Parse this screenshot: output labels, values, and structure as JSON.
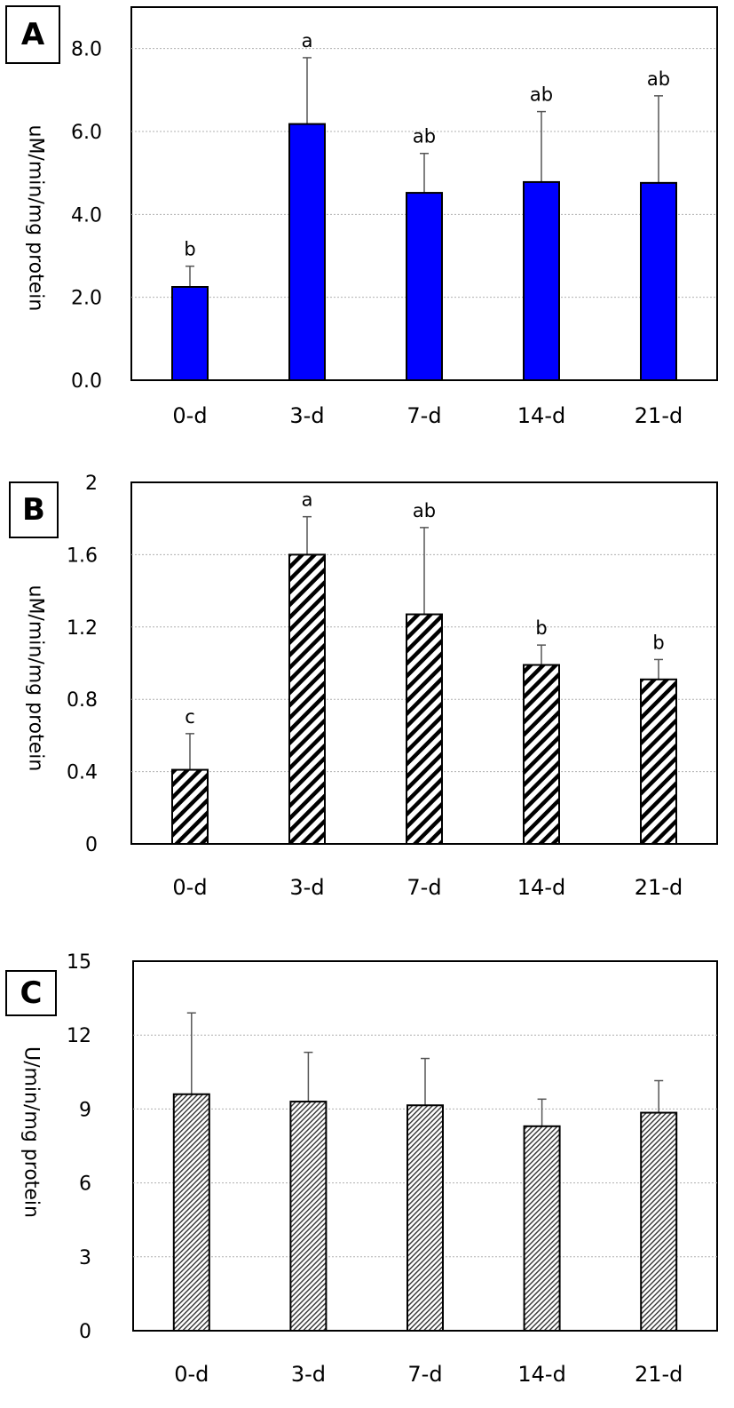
{
  "chart_data": [
    {
      "type": "bar",
      "panel_label": "A",
      "ylabel": "uM/min/mg protein",
      "xlabel": "",
      "categories": [
        "0-d",
        "3-d",
        "7-d",
        "14-d",
        "21-d"
      ],
      "values": [
        2.25,
        6.18,
        4.52,
        4.78,
        4.76
      ],
      "errors": [
        0.5,
        1.6,
        0.95,
        1.7,
        2.1
      ],
      "letters": [
        "b",
        "a",
        "ab",
        "ab",
        "ab"
      ],
      "ylim": [
        0,
        9
      ],
      "yticks": [
        "0.0",
        "2.0",
        "4.0",
        "6.0",
        "8.0"
      ],
      "ytick_values": [
        0,
        2,
        4,
        6,
        8
      ],
      "fill": "blue-solid",
      "bar_color": "#0000ff",
      "grid": true
    },
    {
      "type": "bar",
      "panel_label": "B",
      "ylabel": "uM/min/mg protein",
      "xlabel": "",
      "categories": [
        "0-d",
        "3-d",
        "7-d",
        "14-d",
        "21-d"
      ],
      "values": [
        0.41,
        1.6,
        1.27,
        0.99,
        0.91
      ],
      "errors": [
        0.2,
        0.21,
        0.48,
        0.11,
        0.11
      ],
      "letters": [
        "c",
        "a",
        "ab",
        "b",
        "b"
      ],
      "ylim": [
        0,
        2
      ],
      "yticks": [
        "0",
        "0.4",
        "0.8",
        "1.2",
        "1.6",
        "2"
      ],
      "ytick_values": [
        0,
        0.4,
        0.8,
        1.2,
        1.6,
        2
      ],
      "fill": "wide-diagonal-hatch",
      "grid": true
    },
    {
      "type": "bar",
      "panel_label": "C",
      "ylabel": "U/min/mg protein",
      "xlabel": "",
      "categories": [
        "0-d",
        "3-d",
        "7-d",
        "14-d",
        "21-d"
      ],
      "values": [
        9.6,
        9.3,
        9.15,
        8.3,
        8.85
      ],
      "errors": [
        3.3,
        2.0,
        1.9,
        1.1,
        1.3
      ],
      "letters": [],
      "ylim": [
        0,
        15
      ],
      "yticks": [
        "0",
        "3",
        "6",
        "9",
        "12",
        "15"
      ],
      "ytick_values": [
        0,
        3,
        6,
        9,
        12,
        15
      ],
      "fill": "fine-diagonal-hatch",
      "grid": true
    }
  ]
}
